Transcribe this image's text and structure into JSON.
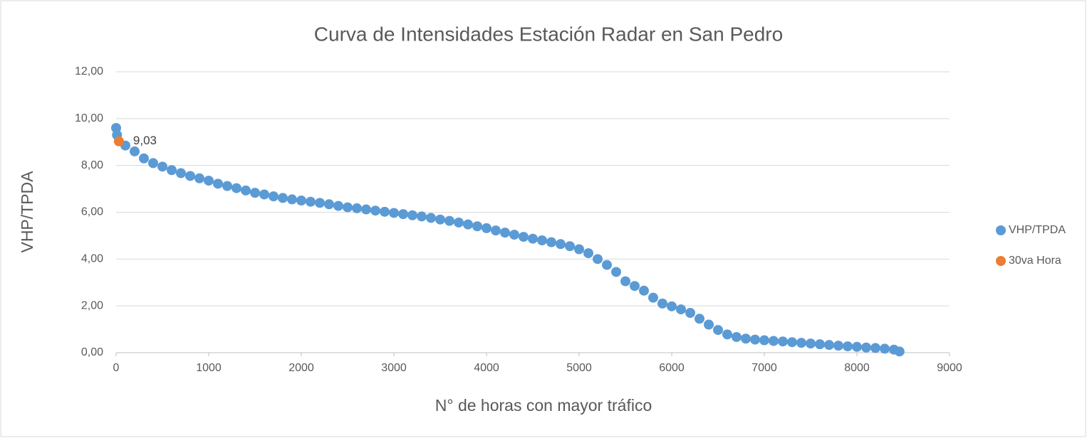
{
  "chart_data": {
    "type": "scatter",
    "title": "Curva de Intensidades Estación Radar en San Pedro",
    "xlabel": "N° de horas con mayor tráfico",
    "ylabel": "VHP/TPDA",
    "xlim": [
      0,
      9000
    ],
    "xticks": [
      0,
      1000,
      2000,
      3000,
      4000,
      5000,
      6000,
      7000,
      8000,
      9000
    ],
    "ylim": [
      0,
      12
    ],
    "yticks": [
      {
        "value": 0,
        "label": "0,00"
      },
      {
        "value": 2,
        "label": "2,00"
      },
      {
        "value": 4,
        "label": "4,00"
      },
      {
        "value": 6,
        "label": "6,00"
      },
      {
        "value": 8,
        "label": "8,00"
      },
      {
        "value": 10,
        "label": "10,00"
      },
      {
        "value": 12,
        "label": "12,00"
      }
    ],
    "grid": true,
    "legend": "right",
    "series": [
      {
        "name": "VHP/TPDA",
        "color": "#5b9bd5",
        "x": [
          0,
          10,
          100,
          200,
          300,
          400,
          500,
          600,
          700,
          800,
          900,
          1000,
          1100,
          1200,
          1300,
          1400,
          1500,
          1600,
          1700,
          1800,
          1900,
          2000,
          2100,
          2200,
          2300,
          2400,
          2500,
          2600,
          2700,
          2800,
          2900,
          3000,
          3100,
          3200,
          3300,
          3400,
          3500,
          3600,
          3700,
          3800,
          3900,
          4000,
          4100,
          4200,
          4300,
          4400,
          4500,
          4600,
          4700,
          4800,
          4900,
          5000,
          5100,
          5200,
          5300,
          5400,
          5500,
          5600,
          5700,
          5800,
          5900,
          6000,
          6100,
          6200,
          6300,
          6400,
          6500,
          6600,
          6700,
          6800,
          6900,
          7000,
          7100,
          7200,
          7300,
          7400,
          7500,
          7600,
          7700,
          7800,
          7900,
          8000,
          8100,
          8200,
          8300,
          8400,
          8460
        ],
        "values": [
          9.6,
          9.3,
          8.85,
          8.6,
          8.3,
          8.1,
          7.95,
          7.8,
          7.67,
          7.55,
          7.45,
          7.35,
          7.22,
          7.12,
          7.03,
          6.93,
          6.83,
          6.76,
          6.68,
          6.61,
          6.55,
          6.5,
          6.45,
          6.4,
          6.34,
          6.27,
          6.21,
          6.17,
          6.12,
          6.07,
          6.02,
          5.97,
          5.92,
          5.87,
          5.82,
          5.76,
          5.69,
          5.63,
          5.56,
          5.48,
          5.4,
          5.32,
          5.22,
          5.13,
          5.04,
          4.95,
          4.87,
          4.8,
          4.72,
          4.64,
          4.55,
          4.42,
          4.25,
          4.0,
          3.75,
          3.45,
          3.05,
          2.85,
          2.65,
          2.35,
          2.1,
          1.98,
          1.85,
          1.7,
          1.45,
          1.2,
          0.97,
          0.78,
          0.67,
          0.6,
          0.56,
          0.53,
          0.5,
          0.48,
          0.45,
          0.42,
          0.39,
          0.36,
          0.33,
          0.3,
          0.27,
          0.25,
          0.22,
          0.2,
          0.17,
          0.13,
          0.05
        ]
      },
      {
        "name": "30va Hora",
        "color": "#ed7d31",
        "x": [
          30
        ],
        "values": [
          9.03
        ],
        "value_labels": [
          "9,03"
        ]
      }
    ]
  }
}
